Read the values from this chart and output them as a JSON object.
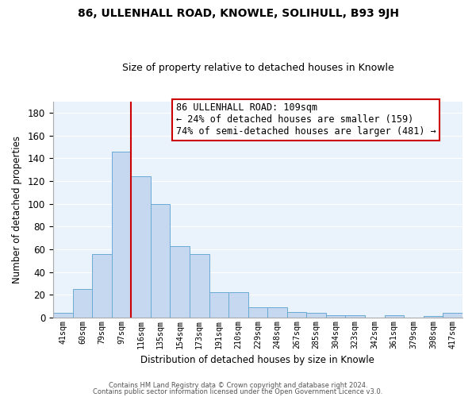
{
  "title": "86, ULLENHALL ROAD, KNOWLE, SOLIHULL, B93 9JH",
  "subtitle": "Size of property relative to detached houses in Knowle",
  "xlabel": "Distribution of detached houses by size in Knowle",
  "ylabel": "Number of detached properties",
  "bar_labels": [
    "41sqm",
    "60sqm",
    "79sqm",
    "97sqm",
    "116sqm",
    "135sqm",
    "154sqm",
    "173sqm",
    "191sqm",
    "210sqm",
    "229sqm",
    "248sqm",
    "267sqm",
    "285sqm",
    "304sqm",
    "323sqm",
    "342sqm",
    "361sqm",
    "379sqm",
    "398sqm",
    "417sqm"
  ],
  "bar_values": [
    4,
    25,
    56,
    146,
    124,
    100,
    63,
    56,
    22,
    22,
    9,
    9,
    5,
    4,
    2,
    2,
    0,
    2,
    0,
    1,
    4
  ],
  "bar_color": "#c5d8ef",
  "bar_edge_color": "#6aaad4",
  "vline_color": "#cc0000",
  "vline_pos": 3.5,
  "annotation_title": "86 ULLENHALL ROAD: 109sqm",
  "annotation_line1": "← 24% of detached houses are smaller (159)",
  "annotation_line2": "74% of semi-detached houses are larger (481) →",
  "annotation_box_color": "#ffffff",
  "annotation_box_edge": "#cc0000",
  "ylim": [
    0,
    190
  ],
  "yticks": [
    0,
    20,
    40,
    60,
    80,
    100,
    120,
    140,
    160,
    180
  ],
  "footer1": "Contains HM Land Registry data © Crown copyright and database right 2024.",
  "footer2": "Contains public sector information licensed under the Open Government Licence v3.0.",
  "bg_color": "#ffffff",
  "plot_bg_color": "#eaf2fb",
  "grid_color": "#ffffff"
}
